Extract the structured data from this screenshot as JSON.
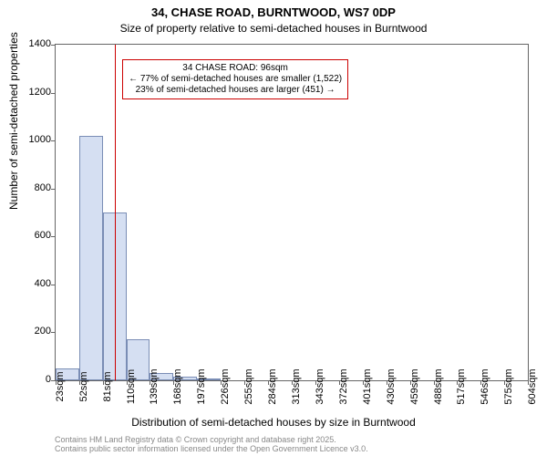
{
  "chart": {
    "type": "histogram",
    "title": "34, CHASE ROAD, BURNTWOOD, WS7 0DP",
    "title_fontsize": 13,
    "subtitle": "Size of property relative to semi-detached houses in Burntwood",
    "subtitle_fontsize": 12,
    "background_color": "#ffffff",
    "plot_border_color": "#666666",
    "ylabel": "Number of semi-detached properties",
    "xlabel": "Distribution of semi-detached houses by size in Burntwood",
    "label_fontsize": 12,
    "tick_fontsize": 11,
    "ylim": [
      0,
      1400
    ],
    "yticks": [
      0,
      200,
      400,
      600,
      800,
      1000,
      1200,
      1400
    ],
    "x_tick_labels": [
      "23sqm",
      "52sqm",
      "81sqm",
      "110sqm",
      "139sqm",
      "168sqm",
      "197sqm",
      "226sqm",
      "255sqm",
      "284sqm",
      "313sqm",
      "343sqm",
      "372sqm",
      "401sqm",
      "430sqm",
      "459sqm",
      "488sqm",
      "517sqm",
      "546sqm",
      "575sqm",
      "604sqm"
    ],
    "x_min": 23,
    "x_max": 604,
    "bar_color": "#d5dff2",
    "bar_border_color": "#7a8db5",
    "bin_width_sqm": 29,
    "bars": [
      {
        "x_start": 23,
        "value": 50
      },
      {
        "x_start": 52,
        "value": 1020
      },
      {
        "x_start": 81,
        "value": 700
      },
      {
        "x_start": 110,
        "value": 170
      },
      {
        "x_start": 139,
        "value": 30
      },
      {
        "x_start": 168,
        "value": 15
      },
      {
        "x_start": 197,
        "value": 5
      }
    ],
    "marker": {
      "value_sqm": 96,
      "color": "#cc0000"
    },
    "annotation": {
      "line1": "34 CHASE ROAD: 96sqm",
      "line2": "← 77% of semi-detached houses are smaller (1,522)",
      "line3": "23% of semi-detached houses are larger (451) →",
      "border_color": "#cc0000",
      "background_color": "#ffffff",
      "fontsize": 10
    },
    "footer": {
      "line1": "Contains HM Land Registry data © Crown copyright and database right 2025.",
      "line2": "Contains public sector information licensed under the Open Government Licence v3.0.",
      "fontsize": 9,
      "color": "#888888"
    }
  }
}
